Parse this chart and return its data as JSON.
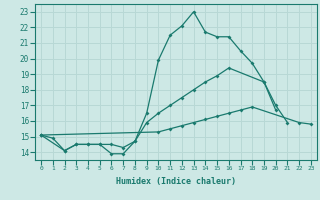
{
  "background_color": "#cde8e5",
  "grid_color": "#b8d8d5",
  "line_color": "#1a7a6e",
  "xlabel": "Humidex (Indice chaleur)",
  "xlim": [
    -0.5,
    23.5
  ],
  "ylim": [
    13.5,
    23.5
  ],
  "yticks": [
    14,
    15,
    16,
    17,
    18,
    19,
    20,
    21,
    22,
    23
  ],
  "xticks": [
    0,
    1,
    2,
    3,
    4,
    5,
    6,
    7,
    8,
    9,
    10,
    11,
    12,
    13,
    14,
    15,
    16,
    17,
    18,
    19,
    20,
    21,
    22,
    23
  ],
  "line1_x": [
    0,
    1,
    2,
    3,
    4,
    5,
    6,
    7,
    8,
    9,
    10,
    11,
    12,
    13,
    14,
    15,
    16,
    17,
    18,
    19,
    20,
    21
  ],
  "line1_y": [
    15.1,
    14.9,
    14.1,
    14.5,
    14.5,
    14.5,
    13.9,
    13.9,
    14.7,
    16.5,
    19.9,
    21.5,
    22.1,
    23.0,
    21.7,
    21.4,
    21.4,
    20.5,
    19.7,
    18.5,
    17.0,
    15.9
  ],
  "line2_x": [
    0,
    2,
    3,
    4,
    5,
    6,
    7,
    8,
    9,
    10,
    11,
    12,
    13,
    14,
    15,
    16,
    19,
    20
  ],
  "line2_y": [
    15.1,
    14.1,
    14.5,
    14.5,
    14.5,
    14.5,
    14.3,
    14.7,
    15.9,
    16.5,
    17.0,
    17.5,
    18.0,
    18.5,
    18.9,
    19.4,
    18.5,
    16.7
  ],
  "line3_x": [
    0,
    10,
    11,
    12,
    13,
    14,
    15,
    16,
    17,
    18,
    22,
    23
  ],
  "line3_y": [
    15.1,
    15.3,
    15.5,
    15.7,
    15.9,
    16.1,
    16.3,
    16.5,
    16.7,
    16.9,
    15.9,
    15.8
  ]
}
